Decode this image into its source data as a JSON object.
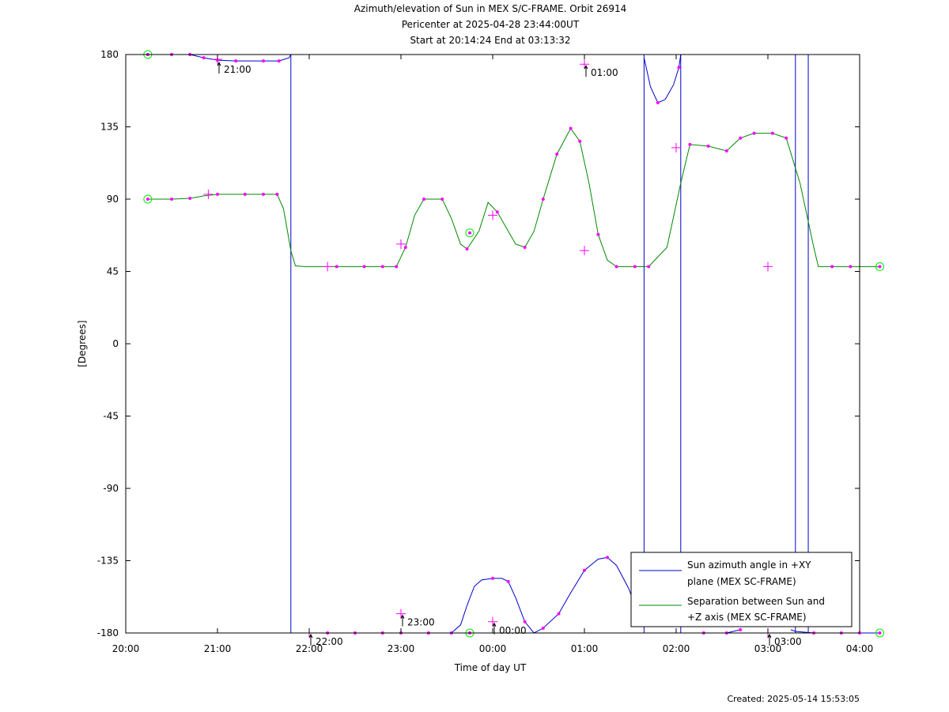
{
  "title_lines": [
    "Azimuth/elevation of Sun in MEX S/C-FRAME.  Orbit 26914",
    "Pericenter at 2025-04-28 23:44:00UT",
    "Start at 20:14:24 End at 03:13:32"
  ],
  "footer": "Created: 2025-05-14 15:53:05",
  "colors": {
    "azimuth": "#0000cc",
    "separation": "#008800",
    "markers": "#ff00ff",
    "circle": "#00ee00",
    "axes": "#000000"
  },
  "chart_data": {
    "type": "line",
    "xlabel": "Time of day UT",
    "ylabel": "[Degrees]",
    "x_ticks": [
      "20:00",
      "21:00",
      "22:00",
      "23:00",
      "00:00",
      "01:00",
      "02:00",
      "03:00",
      "04:00"
    ],
    "x_range_hours": [
      20,
      28
    ],
    "y_ticks": [
      "180",
      "135",
      "90",
      "45",
      "0",
      "-45",
      "-90",
      "-135",
      "-180"
    ],
    "ylim": [
      -180,
      180
    ],
    "legend_position": "bottom-right",
    "hour_annotations": [
      {
        "label": "21:00",
        "x": 21.0,
        "y": 176
      },
      {
        "label": "22:00",
        "x": 22.0,
        "y": -180
      },
      {
        "label": "23:00",
        "x": 23.0,
        "y": -168
      },
      {
        "label": "00:00",
        "x": 24.0,
        "y": -173
      },
      {
        "label": "01:00",
        "x": 25.0,
        "y": 174
      },
      {
        "label": "03:00",
        "x": 27.0,
        "y": -180
      }
    ],
    "series": [
      {
        "name": "Sun azimuth angle in +XY plane (MEX SC-FRAME)",
        "legend_lines": [
          "Sun azimuth angle in +XY",
          "plane (MEX SC-FRAME)"
        ],
        "points": [
          [
            20.24,
            180
          ],
          [
            20.5,
            180
          ],
          [
            20.7,
            180
          ],
          [
            20.85,
            178
          ],
          [
            21.0,
            176.5
          ],
          [
            21.2,
            176
          ],
          [
            21.5,
            176
          ],
          [
            21.67,
            176
          ],
          [
            21.78,
            178
          ],
          [
            21.8,
            180
          ],
          [
            21.8,
            null
          ],
          [
            21.8,
            -180
          ],
          [
            22.2,
            -180
          ],
          [
            22.5,
            -180
          ],
          [
            23.0,
            -180
          ],
          [
            23.3,
            -180
          ],
          [
            23.55,
            -180
          ],
          [
            23.65,
            -175
          ],
          [
            23.72,
            -163
          ],
          [
            23.8,
            -151
          ],
          [
            23.88,
            -147
          ],
          [
            24.0,
            -146
          ],
          [
            24.1,
            -146
          ],
          [
            24.17,
            -148
          ],
          [
            24.25,
            -158
          ],
          [
            24.35,
            -173
          ],
          [
            24.45,
            -180
          ],
          [
            24.55,
            -177
          ],
          [
            24.72,
            -168
          ],
          [
            24.85,
            -155
          ],
          [
            25.0,
            -141
          ],
          [
            25.15,
            -134
          ],
          [
            25.25,
            -133
          ],
          [
            25.35,
            -138
          ],
          [
            25.48,
            -152
          ],
          [
            25.6,
            -170
          ],
          [
            25.65,
            -176
          ],
          [
            25.65,
            null
          ],
          [
            25.65,
            178
          ],
          [
            25.72,
            160
          ],
          [
            25.8,
            150
          ],
          [
            25.88,
            152
          ],
          [
            25.97,
            161
          ],
          [
            26.03,
            172
          ],
          [
            26.05,
            180
          ],
          [
            26.05,
            null
          ],
          [
            26.05,
            -180
          ],
          [
            26.3,
            -180
          ],
          [
            26.55,
            -180
          ],
          [
            26.7,
            -178
          ],
          [
            26.7,
            null
          ],
          [
            27.25,
            -178
          ],
          [
            27.3,
            -179
          ],
          [
            27.5,
            -180
          ],
          [
            27.8,
            -180
          ],
          [
            28.0,
            -180
          ],
          [
            28.22,
            -180
          ]
        ],
        "vertical_jumps": [
          21.8,
          25.65,
          26.05,
          27.3,
          27.44
        ]
      },
      {
        "name": "Separation between Sun and +Z axis (MEX SC-FRAME)",
        "legend_lines": [
          "Separation between Sun and",
          "+Z axis (MEX SC-FRAME)"
        ],
        "points": [
          [
            20.24,
            90
          ],
          [
            20.5,
            90
          ],
          [
            20.7,
            90.5
          ],
          [
            20.85,
            92
          ],
          [
            21.0,
            93
          ],
          [
            21.3,
            93
          ],
          [
            21.5,
            93
          ],
          [
            21.65,
            93
          ],
          [
            21.72,
            84
          ],
          [
            21.8,
            58
          ],
          [
            21.85,
            48.5
          ],
          [
            21.95,
            48
          ],
          [
            22.3,
            48
          ],
          [
            22.6,
            48
          ],
          [
            22.8,
            48
          ],
          [
            22.95,
            48
          ],
          [
            23.05,
            60
          ],
          [
            23.15,
            80
          ],
          [
            23.25,
            90
          ],
          [
            23.35,
            90
          ],
          [
            23.45,
            90
          ],
          [
            23.55,
            78
          ],
          [
            23.65,
            62
          ],
          [
            23.72,
            59
          ],
          [
            23.85,
            70
          ],
          [
            23.95,
            88
          ],
          [
            24.05,
            82
          ],
          [
            24.15,
            72
          ],
          [
            24.25,
            62
          ],
          [
            24.35,
            60
          ],
          [
            24.45,
            70
          ],
          [
            24.55,
            90
          ],
          [
            24.7,
            118
          ],
          [
            24.85,
            134
          ],
          [
            24.95,
            126
          ],
          [
            25.05,
            100
          ],
          [
            25.15,
            68
          ],
          [
            25.25,
            52
          ],
          [
            25.35,
            48
          ],
          [
            25.55,
            48
          ],
          [
            25.7,
            48
          ],
          [
            25.9,
            60
          ],
          [
            26.05,
            100
          ],
          [
            26.15,
            124
          ],
          [
            26.35,
            123
          ],
          [
            26.55,
            120
          ],
          [
            26.7,
            128
          ],
          [
            26.85,
            131
          ],
          [
            27.05,
            131
          ],
          [
            27.2,
            128
          ],
          [
            27.35,
            100
          ],
          [
            27.5,
            60
          ],
          [
            27.55,
            48
          ],
          [
            27.7,
            48
          ],
          [
            27.9,
            48
          ],
          [
            28.22,
            48
          ]
        ]
      }
    ],
    "markers": [
      [
        20.24,
        180
      ],
      [
        20.5,
        180
      ],
      [
        20.7,
        180
      ],
      [
        20.85,
        178
      ],
      [
        21.0,
        176.5
      ],
      [
        21.2,
        176
      ],
      [
        21.5,
        176
      ],
      [
        21.67,
        176
      ],
      [
        22.2,
        -180
      ],
      [
        22.5,
        -180
      ],
      [
        22.8,
        -180
      ],
      [
        23.0,
        -180
      ],
      [
        23.3,
        -180
      ],
      [
        23.55,
        -180
      ],
      [
        24.0,
        -146
      ],
      [
        24.17,
        -148
      ],
      [
        24.35,
        -173
      ],
      [
        24.55,
        -177
      ],
      [
        24.72,
        -168
      ],
      [
        25.0,
        -141
      ],
      [
        25.25,
        -133
      ],
      [
        25.6,
        -170
      ],
      [
        25.8,
        150
      ],
      [
        26.03,
        172
      ],
      [
        26.3,
        -180
      ],
      [
        26.55,
        -180
      ],
      [
        26.7,
        -178
      ],
      [
        27.5,
        -180
      ],
      [
        27.8,
        -180
      ],
      [
        28.0,
        -180
      ],
      [
        20.5,
        90
      ],
      [
        20.7,
        90.5
      ],
      [
        21.0,
        93
      ],
      [
        21.3,
        93
      ],
      [
        21.5,
        93
      ],
      [
        21.65,
        93
      ],
      [
        22.3,
        48
      ],
      [
        22.6,
        48
      ],
      [
        22.8,
        48
      ],
      [
        22.95,
        48
      ],
      [
        23.05,
        60
      ],
      [
        23.25,
        90
      ],
      [
        23.45,
        90
      ],
      [
        23.72,
        59
      ],
      [
        24.05,
        82
      ],
      [
        24.35,
        60
      ],
      [
        24.55,
        90
      ],
      [
        24.7,
        118
      ],
      [
        24.85,
        134
      ],
      [
        24.95,
        126
      ],
      [
        25.15,
        68
      ],
      [
        25.35,
        48
      ],
      [
        25.55,
        48
      ],
      [
        25.7,
        48
      ],
      [
        26.15,
        124
      ],
      [
        26.35,
        123
      ],
      [
        26.55,
        120
      ],
      [
        26.7,
        128
      ],
      [
        26.85,
        131
      ],
      [
        27.05,
        131
      ],
      [
        27.2,
        128
      ],
      [
        27.7,
        48
      ],
      [
        27.9,
        48
      ]
    ],
    "cross_markers": [
      [
        20.9,
        93
      ],
      [
        21.0,
        177
      ],
      [
        22.0,
        -180
      ],
      [
        22.2,
        48
      ],
      [
        23.0,
        62
      ],
      [
        23.0,
        -168
      ],
      [
        24.0,
        80
      ],
      [
        24.0,
        -173
      ],
      [
        25.0,
        174
      ],
      [
        25.0,
        58
      ],
      [
        26.0,
        122
      ],
      [
        27.0,
        48
      ],
      [
        27.0,
        -180
      ]
    ],
    "circle_markers": [
      [
        20.24,
        180
      ],
      [
        20.24,
        90
      ],
      [
        23.75,
        69
      ],
      [
        23.75,
        -180
      ],
      [
        28.22,
        48
      ],
      [
        28.22,
        -180
      ]
    ]
  }
}
